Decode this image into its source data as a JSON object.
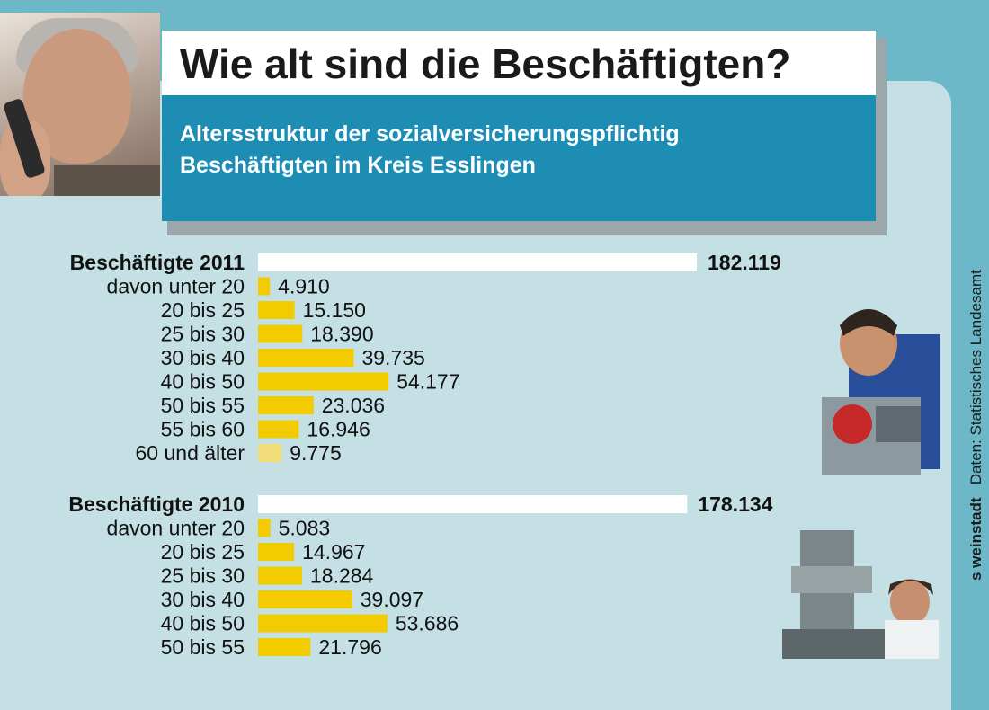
{
  "header": {
    "title": "Wie alt sind die Beschäftigten?",
    "subtitle_line1": "Altersstruktur der sozialversicherungspflichtig",
    "subtitle_line2": "Beschäftigten im Kreis Esslingen"
  },
  "source": {
    "credit": "s weinstadt",
    "data_label": "Daten: Statistisches Landesamt"
  },
  "colors": {
    "background": "#6cb8c9",
    "panel": "#c4e0e5",
    "subtitle_band": "#1e8db4",
    "bar_yellow": "#f2cb00",
    "bar_light_yellow": "#f0dc78",
    "total_bar": "#ffffff"
  },
  "chart_data": {
    "type": "bar",
    "orientation": "horizontal",
    "title": "Wie alt sind die Beschäftigten?",
    "groups": [
      {
        "total_label": "Beschäftigte 2011",
        "total_value": 182119,
        "total_text": "182.119",
        "categories": [
          "davon unter 20",
          "20 bis 25",
          "25 bis 30",
          "30 bis 40",
          "40 bis 50",
          "50 bis 55",
          "55 bis 60",
          "60 und älter"
        ],
        "values": [
          4910,
          15150,
          18390,
          39735,
          54177,
          23036,
          16946,
          9775
        ],
        "value_texts": [
          "4.910",
          "15.150",
          "18.390",
          "39.735",
          "54.177",
          "23.036",
          "16.946",
          "9.775"
        ]
      },
      {
        "total_label": "Beschäftigte 2010",
        "total_value": 178134,
        "total_text": "178.134",
        "categories": [
          "davon unter 20",
          "20 bis 25",
          "25 bis 30",
          "30 bis 40",
          "40 bis 50",
          "50 bis 55"
        ],
        "values": [
          5083,
          14967,
          18284,
          39097,
          53686,
          21796
        ],
        "value_texts": [
          "5.083",
          "14.967",
          "18.284",
          "39.097",
          "53.686",
          "21.796"
        ]
      }
    ]
  }
}
